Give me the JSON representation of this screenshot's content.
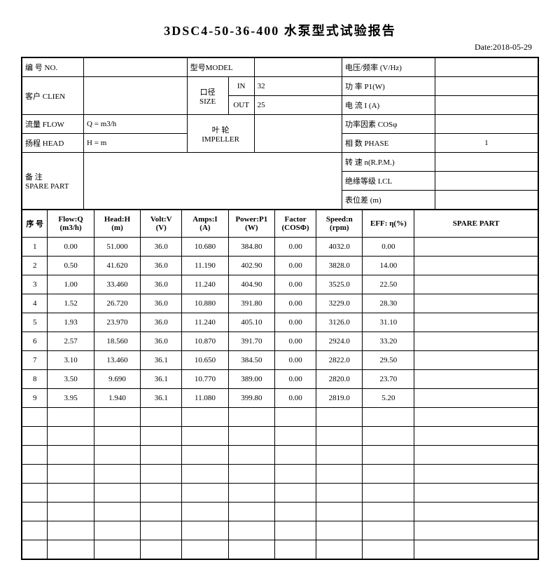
{
  "title": "3DSC4-50-36-400 水泵型式试验报告",
  "date_label": "Date:2018-05-29",
  "header": {
    "no_label": "编 号  NO.",
    "model_label": "型号MODEL",
    "voltfreq_label": "电压/频率 (V/Hz)",
    "client_label": "客户 CLIEN",
    "size_label": "口径\nSIZE",
    "size_in_label": "IN",
    "size_in_val": "32",
    "size_out_label": "OUT",
    "size_out_val": "25",
    "power_label": "功 率    P1(W)",
    "current_label": "电 流    I (A)",
    "flow_label": "流量 FLOW",
    "flow_eq": "Q   =        m3/h",
    "impeller_label": "叶 轮\nIMPELLER",
    "pf_label": "功率因素  COSφ",
    "head_label": "扬程 HEAD",
    "head_eq": "H   =        m",
    "phase_label": "相 数    PHASE",
    "phase_val": "1",
    "spare_label": "备  注\nSPARE PART",
    "speed_label": "转  速 n(R.P.M.)",
    "insul_label": "绝缘等级   I.CL",
    "level_label": "表位差 (m)"
  },
  "columns": {
    "seq": "序 号",
    "flow": "Flow:Q\n(m3/h)",
    "head": "Head:H\n(m)",
    "volt": "Volt:V\n(V)",
    "amps": "Amps:I\n(A)",
    "power": "Power:P1\n(W)",
    "factor": "Factor\n(COSΦ)",
    "speed": "Speed:n\n(rpm)",
    "eff": "EFF: η(%)",
    "spare": "SPARE PART"
  },
  "rows": [
    [
      "1",
      "0.00",
      "51.000",
      "36.0",
      "10.680",
      "384.80",
      "0.00",
      "4032.0",
      "0.00",
      ""
    ],
    [
      "2",
      "0.50",
      "41.620",
      "36.0",
      "11.190",
      "402.90",
      "0.00",
      "3828.0",
      "14.00",
      ""
    ],
    [
      "3",
      "1.00",
      "33.460",
      "36.0",
      "11.240",
      "404.90",
      "0.00",
      "3525.0",
      "22.50",
      ""
    ],
    [
      "4",
      "1.52",
      "26.720",
      "36.0",
      "10.880",
      "391.80",
      "0.00",
      "3229.0",
      "28.30",
      ""
    ],
    [
      "5",
      "1.93",
      "23.970",
      "36.0",
      "11.240",
      "405.10",
      "0.00",
      "3126.0",
      "31.10",
      ""
    ],
    [
      "6",
      "2.57",
      "18.560",
      "36.0",
      "10.870",
      "391.70",
      "0.00",
      "2924.0",
      "33.20",
      ""
    ],
    [
      "7",
      "3.10",
      "13.460",
      "36.1",
      "10.650",
      "384.50",
      "0.00",
      "2822.0",
      "29.50",
      ""
    ],
    [
      "8",
      "3.50",
      "9.690",
      "36.1",
      "10.770",
      "389.00",
      "0.00",
      "2820.0",
      "23.70",
      ""
    ],
    [
      "9",
      "3.95",
      "1.940",
      "36.1",
      "11.080",
      "399.80",
      "0.00",
      "2819.0",
      "5.20",
      ""
    ]
  ],
  "empty_rows": 8,
  "styling": {
    "border_color": "#000000",
    "font_family": "SimSun",
    "title_fontsize": 18,
    "cell_fontsize": 11,
    "col_widths_pct": [
      5,
      9,
      9,
      8,
      9,
      9,
      8,
      9,
      10,
      24
    ]
  }
}
